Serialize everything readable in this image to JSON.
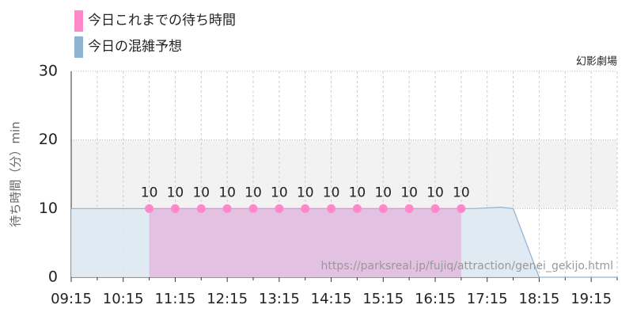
{
  "chart_data": {
    "type": "area",
    "legend": "top-left",
    "corner_label": "幻影劇場",
    "ylabel": "待ち時間（分）min",
    "watermark": "https://parksreal.jp/fujiq/attraction/genei_gekijo.html",
    "ylim": [
      0,
      30
    ],
    "yticks": [
      0,
      10,
      20,
      30
    ],
    "band": [
      10,
      20
    ],
    "band_color": "#f2f2f2",
    "xlim": [
      "09:15",
      "19:45"
    ],
    "xticks": [
      "09:15",
      "10:15",
      "11:15",
      "12:15",
      "13:15",
      "14:15",
      "15:15",
      "16:15",
      "17:15",
      "18:15",
      "19:15"
    ],
    "x_minor_ticks": [
      "09:45",
      "10:45",
      "11:45",
      "12:45",
      "13:45",
      "14:45",
      "15:45",
      "16:45",
      "17:45",
      "18:45",
      "19:45"
    ],
    "series": [
      {
        "name": "今日これまでの待ち時間",
        "color": "#ff88c8",
        "fill": "#e2bde0",
        "x": [
          "10:45",
          "11:15",
          "11:45",
          "12:15",
          "12:45",
          "13:15",
          "13:45",
          "14:15",
          "14:45",
          "15:15",
          "15:45",
          "16:15",
          "16:45"
        ],
        "values": [
          10,
          10,
          10,
          10,
          10,
          10,
          10,
          10,
          10,
          10,
          10,
          10,
          10
        ],
        "markers": true
      },
      {
        "name": "今日の混雑予想",
        "color": "#8fb2d0",
        "fill": "#dde8f2",
        "x": [
          "09:15",
          "17:00",
          "17:30",
          "17:45",
          "18:15",
          "19:45"
        ],
        "values": [
          10,
          10,
          10.2,
          10,
          0,
          0
        ],
        "markers": false
      }
    ]
  }
}
